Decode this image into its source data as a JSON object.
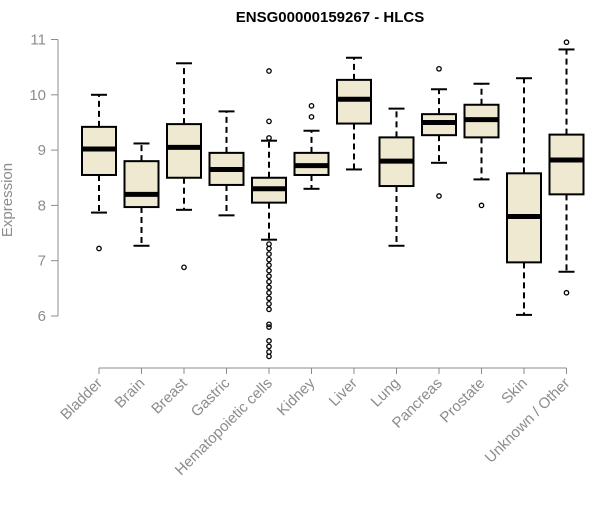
{
  "chart_data": {
    "type": "boxplot",
    "title": "ENSG00000159267 - HLCS",
    "xlabel": "",
    "ylabel": "Expression",
    "ylim": [
      5.0,
      11.0
    ],
    "yticks": [
      6,
      7,
      8,
      9,
      10,
      11
    ],
    "colors": {
      "box_fill": "#efe9d1",
      "stroke": "#000000",
      "axis": "#8c8c8c",
      "text": "#8c8c8c"
    },
    "categories": [
      "Bladder",
      "Brain",
      "Breast",
      "Gastric",
      "Hematopoietic cells",
      "Kidney",
      "Liver",
      "Lung",
      "Pancreas",
      "Prostate",
      "Skin",
      "Unknown / Other"
    ],
    "boxes": [
      {
        "name": "Bladder",
        "whisker_low": 7.87,
        "q1": 8.55,
        "median": 9.02,
        "q3": 9.42,
        "whisker_high": 10.0,
        "outliers": [
          7.22
        ]
      },
      {
        "name": "Brain",
        "whisker_low": 7.27,
        "q1": 7.97,
        "median": 8.2,
        "q3": 8.8,
        "whisker_high": 9.12,
        "outliers": []
      },
      {
        "name": "Breast",
        "whisker_low": 7.92,
        "q1": 8.5,
        "median": 9.05,
        "q3": 9.47,
        "whisker_high": 10.57,
        "outliers": [
          6.88
        ]
      },
      {
        "name": "Gastric",
        "whisker_low": 7.82,
        "q1": 8.37,
        "median": 8.65,
        "q3": 8.95,
        "whisker_high": 9.7,
        "outliers": []
      },
      {
        "name": "Hematopoietic cells",
        "whisker_low": 7.38,
        "q1": 8.05,
        "median": 8.3,
        "q3": 8.5,
        "whisker_high": 9.17,
        "outliers": [
          10.43,
          9.52,
          9.22,
          7.3,
          7.22,
          7.12,
          7.02,
          6.92,
          6.82,
          6.72,
          6.62,
          6.52,
          6.42,
          6.32,
          6.22,
          6.12,
          5.85,
          5.8,
          5.55,
          5.45,
          5.35,
          5.27
        ]
      },
      {
        "name": "Kidney",
        "whisker_low": 8.3,
        "q1": 8.55,
        "median": 8.72,
        "q3": 8.95,
        "whisker_high": 9.35,
        "outliers": [
          9.6,
          9.8
        ]
      },
      {
        "name": "Liver",
        "whisker_low": 8.65,
        "q1": 9.48,
        "median": 9.92,
        "q3": 10.27,
        "whisker_high": 10.67,
        "outliers": []
      },
      {
        "name": "Lung",
        "whisker_low": 7.27,
        "q1": 8.35,
        "median": 8.8,
        "q3": 9.23,
        "whisker_high": 9.75,
        "outliers": []
      },
      {
        "name": "Pancreas",
        "whisker_low": 8.77,
        "q1": 9.27,
        "median": 9.5,
        "q3": 9.65,
        "whisker_high": 10.1,
        "outliers": [
          10.47,
          8.17
        ]
      },
      {
        "name": "Prostate",
        "whisker_low": 8.47,
        "q1": 9.23,
        "median": 9.55,
        "q3": 9.82,
        "whisker_high": 10.2,
        "outliers": [
          8.0
        ]
      },
      {
        "name": "Skin",
        "whisker_low": 6.02,
        "q1": 6.97,
        "median": 7.8,
        "q3": 8.58,
        "whisker_high": 10.3,
        "outliers": []
      },
      {
        "name": "Unknown / Other",
        "whisker_low": 6.8,
        "q1": 8.2,
        "median": 8.82,
        "q3": 9.28,
        "whisker_high": 10.82,
        "outliers": [
          10.95,
          6.42
        ]
      }
    ]
  }
}
